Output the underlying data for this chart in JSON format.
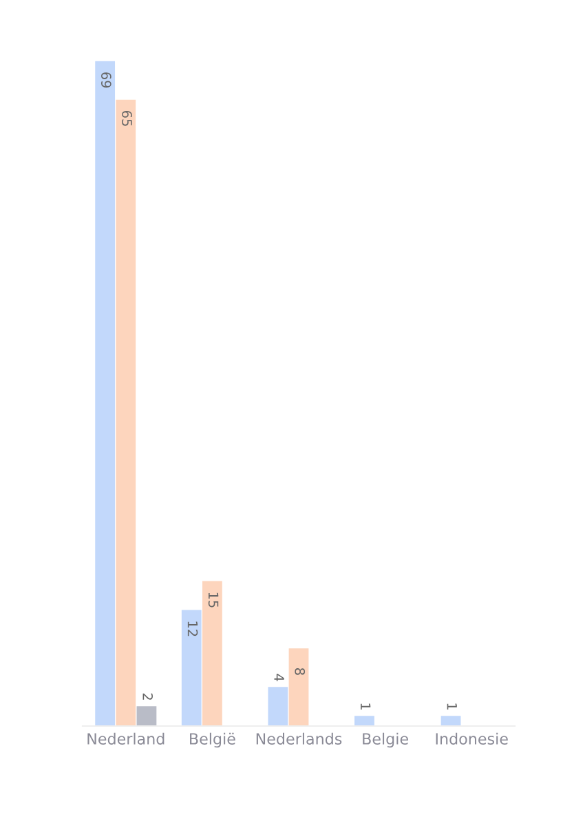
{
  "chart_data": {
    "type": "bar",
    "categories": [
      "Nederland",
      "België",
      "Nederlands",
      "Belgie",
      "Indonesie"
    ],
    "series": [
      {
        "color": "#c2d8fb",
        "values": [
          69,
          12,
          4,
          1,
          1
        ]
      },
      {
        "color": "#fdd5bd",
        "values": [
          65,
          15,
          8,
          null,
          null
        ]
      },
      {
        "color": "#b9bcc7",
        "values": [
          2,
          null,
          null,
          null,
          null
        ]
      }
    ],
    "data_labels": true,
    "legend": false,
    "grid": false
  }
}
